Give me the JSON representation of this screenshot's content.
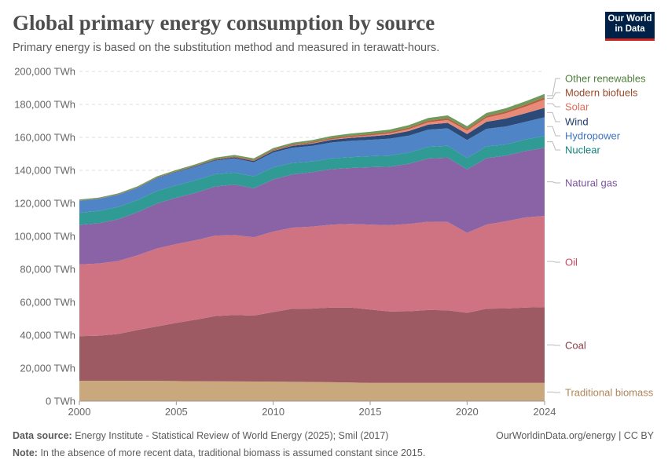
{
  "header": {
    "title": "Global primary energy consumption by source",
    "subtitle": "Primary energy is based on the substitution method and measured in terawatt-hours.",
    "logo": "Our World in Data"
  },
  "footer": {
    "source_label": "Data source:",
    "source": "Energy Institute - Statistical Review of World Energy (2025); Smil (2017)",
    "credit": "OurWorldinData.org/energy | CC BY",
    "note_label": "Note:",
    "note": "In the absence of more recent data, traditional biomass is assumed constant since 2015."
  },
  "chart_data": {
    "type": "area",
    "stacked": true,
    "title": "Global primary energy consumption by source",
    "xlabel": "",
    "ylabel": "",
    "xlim": [
      2000,
      2024
    ],
    "ylim": [
      0,
      200000
    ],
    "x_ticks": [
      "2000",
      "2005",
      "2010",
      "2015",
      "2020",
      "2024"
    ],
    "y_ticks": [
      "0 TWh",
      "20,000 TWh",
      "40,000 TWh",
      "60,000 TWh",
      "80,000 TWh",
      "100,000 TWh",
      "120,000 TWh",
      "140,000 TWh",
      "160,000 TWh",
      "180,000 TWh",
      "200,000 TWh"
    ],
    "grid": "horizontal dashed",
    "legend": "right (inline labels)",
    "x": [
      2000,
      2001,
      2002,
      2003,
      2004,
      2005,
      2006,
      2007,
      2008,
      2009,
      2010,
      2011,
      2012,
      2013,
      2014,
      2015,
      2016,
      2017,
      2018,
      2019,
      2020,
      2021,
      2022,
      2023,
      2024
    ],
    "series": [
      {
        "name": "Traditional biomass",
        "color": "#c8a87c",
        "label_color": "#b0845a",
        "values": [
          12400,
          12400,
          12400,
          12350,
          12300,
          12200,
          12100,
          12000,
          11950,
          11900,
          11850,
          11750,
          11650,
          11500,
          11300,
          11100,
          11100,
          11100,
          11100,
          11100,
          11100,
          11100,
          11100,
          11100,
          11100
        ]
      },
      {
        "name": "Coal",
        "color": "#9e5a62",
        "label_color": "#8a3c46",
        "values": [
          27000,
          27300,
          28300,
          30800,
          33000,
          35300,
          37300,
          39600,
          40300,
          40000,
          42200,
          44300,
          44500,
          45300,
          45500,
          44500,
          43300,
          43400,
          44200,
          44000,
          42500,
          45000,
          45100,
          45700,
          46000
        ]
      },
      {
        "name": "Oil",
        "color": "#cf7383",
        "label_color": "#d3455f",
        "values": [
          43500,
          43800,
          44300,
          45300,
          47300,
          47800,
          48200,
          48800,
          48500,
          47500,
          48800,
          49200,
          49700,
          50300,
          50700,
          51500,
          52300,
          53000,
          53500,
          53600,
          48500,
          51000,
          52900,
          54600,
          55300
        ]
      },
      {
        "name": "Natural gas",
        "color": "#8963a5",
        "label_color": "#7b52a0",
        "values": [
          24000,
          24400,
          25300,
          26200,
          27300,
          28100,
          28800,
          29800,
          30600,
          29700,
          31600,
          32300,
          33000,
          33600,
          33900,
          34800,
          35500,
          36500,
          38400,
          39000,
          38500,
          40300,
          39800,
          40300,
          41300
        ]
      },
      {
        "name": "Nuclear",
        "color": "#2f9b94",
        "label_color": "#13847e",
        "values": [
          7300,
          7500,
          7500,
          7300,
          7600,
          7500,
          7600,
          7400,
          7300,
          7200,
          7400,
          7000,
          6500,
          6500,
          6600,
          6700,
          6800,
          6800,
          7000,
          7200,
          6900,
          7100,
          6800,
          7000,
          7200
        ]
      },
      {
        "name": "Hydropower",
        "color": "#4f85c6",
        "label_color": "#3b74c0",
        "values": [
          7300,
          7200,
          7300,
          7300,
          7700,
          8000,
          8200,
          8300,
          8600,
          8600,
          9000,
          9200,
          9500,
          9700,
          9900,
          9900,
          10200,
          10300,
          10500,
          10600,
          10900,
          10700,
          10900,
          10700,
          11300
        ]
      },
      {
        "name": "Wind",
        "color": "#2c4a78",
        "label_color": "#1f3a6b",
        "values": [
          80,
          100,
          140,
          170,
          230,
          280,
          350,
          450,
          590,
          750,
          940,
          1170,
          1370,
          1620,
          1800,
          2070,
          2410,
          2780,
          3050,
          3330,
          3650,
          4260,
          4800,
          5200,
          5700
        ]
      },
      {
        "name": "Solar",
        "color": "#e98a78",
        "label_color": "#e06c5c",
        "values": [
          3,
          4,
          5,
          7,
          10,
          14,
          17,
          22,
          40,
          60,
          97,
          190,
          290,
          360,
          480,
          600,
          790,
          1100,
          1400,
          1720,
          2030,
          2450,
          3200,
          4000,
          5100
        ]
      },
      {
        "name": "Modern biofuels",
        "color": "#b5603f",
        "label_color": "#9a4a2a",
        "values": [
          110,
          130,
          150,
          180,
          220,
          270,
          340,
          430,
          550,
          600,
          650,
          650,
          720,
          780,
          850,
          880,
          880,
          930,
          1020,
          1050,
          950,
          1050,
          1150,
          1250,
          1300
        ]
      },
      {
        "name": "Other renewables",
        "color": "#6f9a5c",
        "label_color": "#4f7f3a",
        "values": [
          600,
          600,
          640,
          680,
          730,
          770,
          810,
          850,
          890,
          940,
          1000,
          1050,
          1110,
          1200,
          1290,
          1370,
          1450,
          1550,
          1640,
          1720,
          1760,
          1860,
          1910,
          1970,
          2050
        ]
      }
    ]
  }
}
